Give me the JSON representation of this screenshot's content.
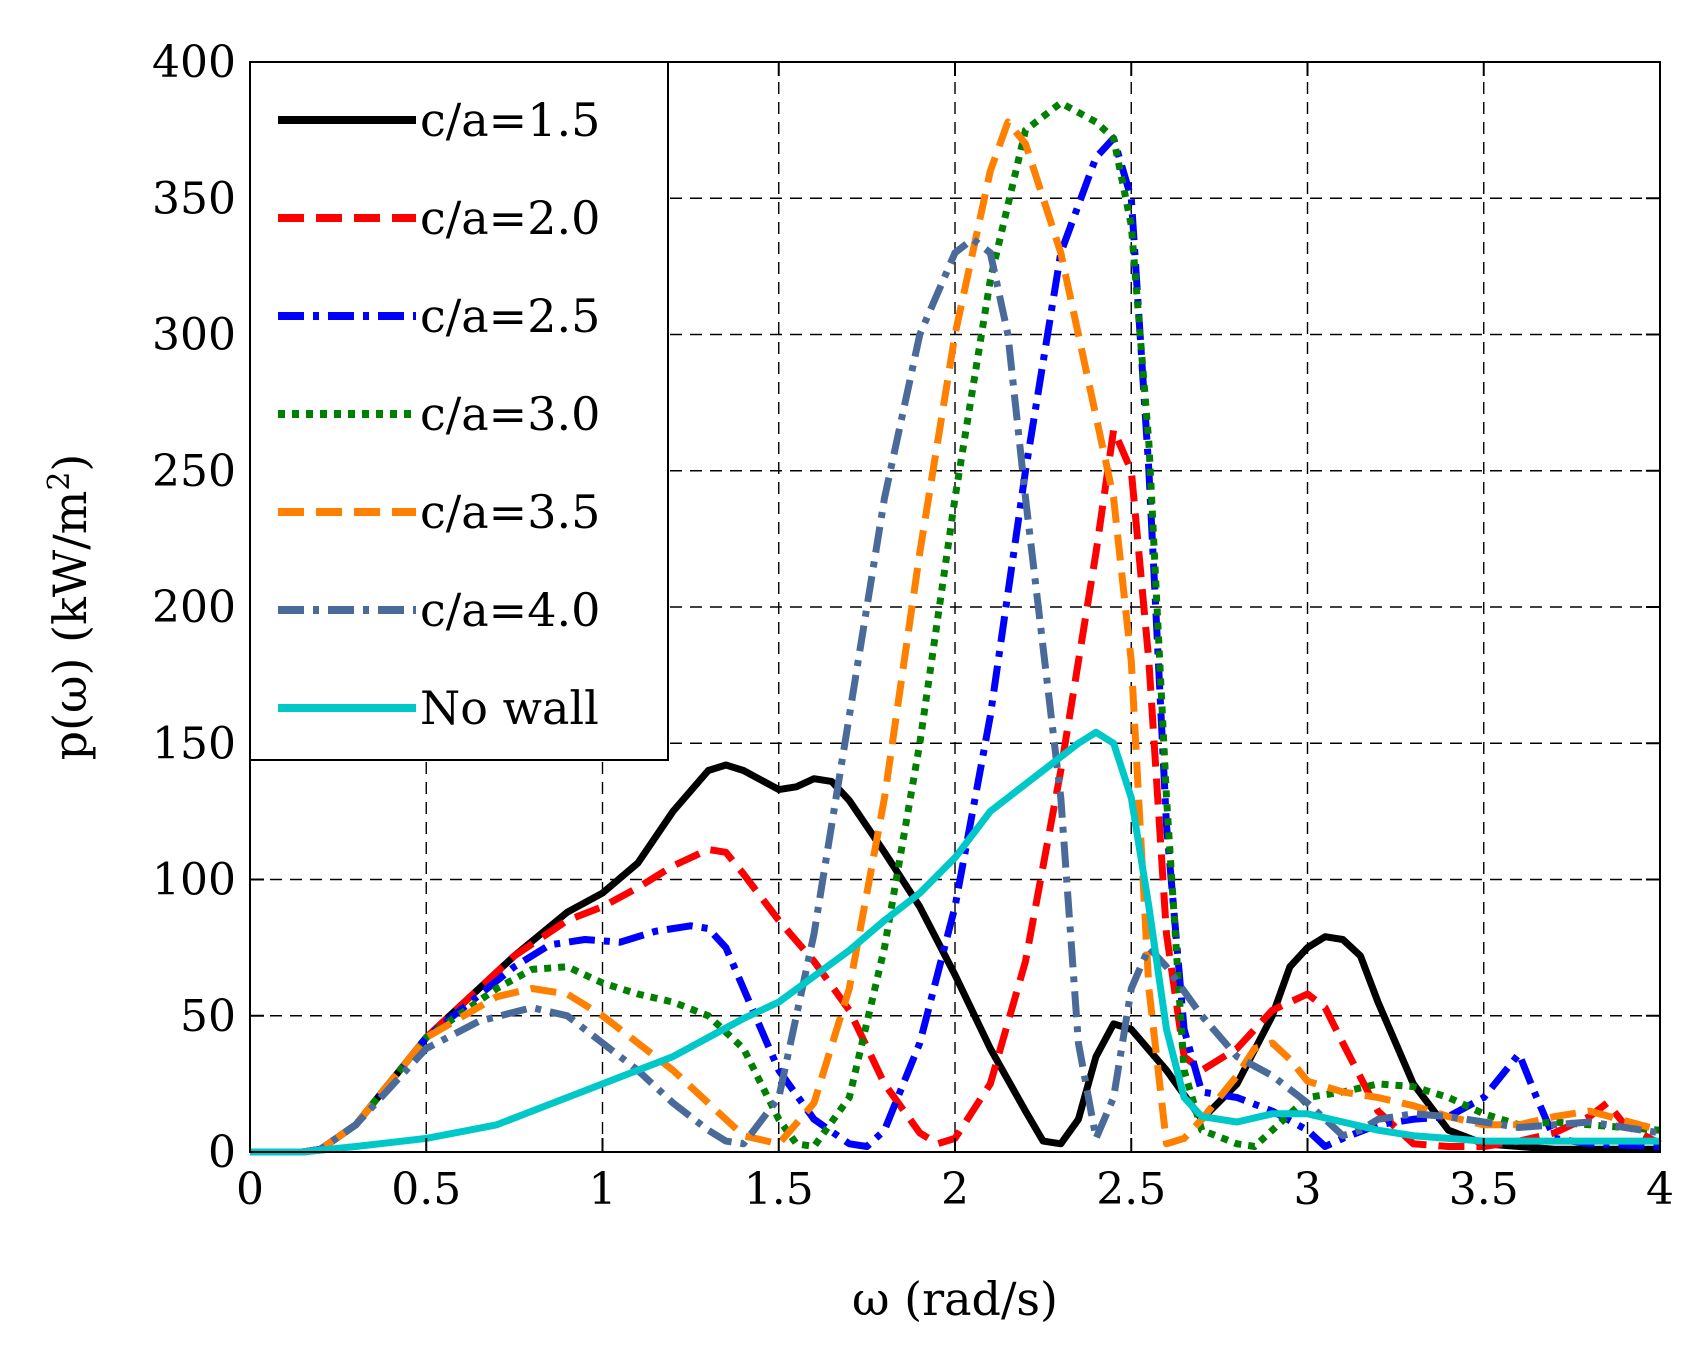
{
  "chart_data": {
    "type": "line",
    "title": "",
    "xlabel": "ω (rad/s)",
    "ylabel": "p(ω) (kW/m",
    "ylabel_sup": "2",
    "ylabel_end": ")",
    "xlim": [
      0,
      4
    ],
    "ylim": [
      0,
      400
    ],
    "xticks": [
      0,
      0.5,
      1,
      1.5,
      2,
      2.5,
      3,
      3.5,
      4
    ],
    "xtick_labels": [
      "0",
      "0.5",
      "1",
      "1.5",
      "2",
      "2.5",
      "3",
      "3.5",
      "4"
    ],
    "yticks": [
      0,
      50,
      100,
      150,
      200,
      250,
      300,
      350,
      400
    ],
    "ytick_labels": [
      "0",
      "50",
      "100",
      "150",
      "200",
      "250",
      "300",
      "350",
      "400"
    ],
    "grid": true,
    "legend_position": "top-left",
    "series": [
      {
        "name": "c/a=1.5",
        "color": "#000000",
        "dash": "solid",
        "points": [
          [
            0,
            0
          ],
          [
            0.15,
            0
          ],
          [
            0.2,
            1
          ],
          [
            0.3,
            10
          ],
          [
            0.5,
            42
          ],
          [
            0.75,
            72
          ],
          [
            0.9,
            88
          ],
          [
            1.0,
            95
          ],
          [
            1.1,
            106
          ],
          [
            1.2,
            125
          ],
          [
            1.3,
            140
          ],
          [
            1.35,
            142
          ],
          [
            1.4,
            140
          ],
          [
            1.5,
            133
          ],
          [
            1.55,
            134
          ],
          [
            1.6,
            137
          ],
          [
            1.65,
            136
          ],
          [
            1.7,
            129
          ],
          [
            1.8,
            110
          ],
          [
            1.9,
            90
          ],
          [
            2.0,
            65
          ],
          [
            2.1,
            38
          ],
          [
            2.2,
            15
          ],
          [
            2.25,
            4
          ],
          [
            2.3,
            3
          ],
          [
            2.35,
            12
          ],
          [
            2.4,
            35
          ],
          [
            2.45,
            47
          ],
          [
            2.5,
            45
          ],
          [
            2.6,
            30
          ],
          [
            2.7,
            12
          ],
          [
            2.8,
            25
          ],
          [
            2.9,
            50
          ],
          [
            2.95,
            68
          ],
          [
            3.0,
            75
          ],
          [
            3.05,
            79
          ],
          [
            3.1,
            78
          ],
          [
            3.15,
            72
          ],
          [
            3.2,
            55
          ],
          [
            3.3,
            25
          ],
          [
            3.4,
            8
          ],
          [
            3.5,
            3
          ],
          [
            3.6,
            2
          ],
          [
            3.7,
            1
          ],
          [
            3.8,
            1
          ],
          [
            4.0,
            1
          ]
        ]
      },
      {
        "name": "c/a=2.0",
        "color": "#ff0000",
        "dash": "dashed",
        "points": [
          [
            0,
            0
          ],
          [
            0.15,
            0
          ],
          [
            0.2,
            1
          ],
          [
            0.3,
            10
          ],
          [
            0.5,
            42
          ],
          [
            0.75,
            72
          ],
          [
            0.9,
            85
          ],
          [
            1.0,
            90
          ],
          [
            1.1,
            97
          ],
          [
            1.2,
            105
          ],
          [
            1.3,
            111
          ],
          [
            1.35,
            110
          ],
          [
            1.4,
            102
          ],
          [
            1.5,
            85
          ],
          [
            1.6,
            70
          ],
          [
            1.7,
            52
          ],
          [
            1.8,
            25
          ],
          [
            1.9,
            7
          ],
          [
            1.95,
            3
          ],
          [
            2.0,
            5
          ],
          [
            2.1,
            25
          ],
          [
            2.2,
            70
          ],
          [
            2.3,
            140
          ],
          [
            2.4,
            220
          ],
          [
            2.45,
            265
          ],
          [
            2.5,
            250
          ],
          [
            2.55,
            180
          ],
          [
            2.6,
            80
          ],
          [
            2.65,
            35
          ],
          [
            2.7,
            30
          ],
          [
            2.8,
            38
          ],
          [
            2.9,
            52
          ],
          [
            3.0,
            58
          ],
          [
            3.05,
            53
          ],
          [
            3.1,
            40
          ],
          [
            3.2,
            15
          ],
          [
            3.3,
            3
          ],
          [
            3.4,
            2
          ],
          [
            3.5,
            2
          ],
          [
            3.6,
            4
          ],
          [
            3.7,
            7
          ],
          [
            3.8,
            13
          ],
          [
            3.85,
            18
          ],
          [
            3.9,
            10
          ],
          [
            4.0,
            3
          ]
        ]
      },
      {
        "name": "c/a=2.5",
        "color": "#0000ff",
        "dash": "dashdot",
        "points": [
          [
            0,
            0
          ],
          [
            0.15,
            0
          ],
          [
            0.2,
            1
          ],
          [
            0.3,
            10
          ],
          [
            0.5,
            42
          ],
          [
            0.75,
            68
          ],
          [
            0.85,
            76
          ],
          [
            0.95,
            78
          ],
          [
            1.05,
            77
          ],
          [
            1.15,
            81
          ],
          [
            1.25,
            83
          ],
          [
            1.3,
            82
          ],
          [
            1.35,
            75
          ],
          [
            1.4,
            60
          ],
          [
            1.5,
            30
          ],
          [
            1.6,
            12
          ],
          [
            1.7,
            3
          ],
          [
            1.75,
            2
          ],
          [
            1.8,
            8
          ],
          [
            1.9,
            40
          ],
          [
            2.0,
            90
          ],
          [
            2.1,
            160
          ],
          [
            2.2,
            250
          ],
          [
            2.3,
            330
          ],
          [
            2.4,
            365
          ],
          [
            2.45,
            372
          ],
          [
            2.5,
            350
          ],
          [
            2.55,
            250
          ],
          [
            2.6,
            120
          ],
          [
            2.65,
            45
          ],
          [
            2.7,
            22
          ],
          [
            2.8,
            20
          ],
          [
            2.9,
            15
          ],
          [
            3.0,
            8
          ],
          [
            3.05,
            2
          ],
          [
            3.1,
            5
          ],
          [
            3.2,
            10
          ],
          [
            3.3,
            12
          ],
          [
            3.4,
            13
          ],
          [
            3.5,
            20
          ],
          [
            3.6,
            36
          ],
          [
            3.65,
            20
          ],
          [
            3.7,
            5
          ],
          [
            3.8,
            3
          ],
          [
            4.0,
            2
          ]
        ]
      },
      {
        "name": "c/a=3.0",
        "color": "#008000",
        "dash": "dotted",
        "points": [
          [
            0,
            0
          ],
          [
            0.15,
            0
          ],
          [
            0.2,
            1
          ],
          [
            0.3,
            10
          ],
          [
            0.5,
            42
          ],
          [
            0.7,
            60
          ],
          [
            0.8,
            67
          ],
          [
            0.9,
            68
          ],
          [
            1.0,
            62
          ],
          [
            1.1,
            58
          ],
          [
            1.2,
            55
          ],
          [
            1.3,
            50
          ],
          [
            1.4,
            38
          ],
          [
            1.5,
            12
          ],
          [
            1.55,
            3
          ],
          [
            1.6,
            2
          ],
          [
            1.7,
            20
          ],
          [
            1.8,
            75
          ],
          [
            1.9,
            150
          ],
          [
            2.0,
            240
          ],
          [
            2.1,
            320
          ],
          [
            2.2,
            375
          ],
          [
            2.3,
            385
          ],
          [
            2.4,
            378
          ],
          [
            2.45,
            372
          ],
          [
            2.5,
            340
          ],
          [
            2.55,
            260
          ],
          [
            2.6,
            130
          ],
          [
            2.65,
            30
          ],
          [
            2.7,
            8
          ],
          [
            2.8,
            3
          ],
          [
            2.85,
            2
          ],
          [
            2.9,
            8
          ],
          [
            3.0,
            20
          ],
          [
            3.1,
            22
          ],
          [
            3.2,
            25
          ],
          [
            3.3,
            24
          ],
          [
            3.4,
            20
          ],
          [
            3.5,
            14
          ],
          [
            3.6,
            10
          ],
          [
            3.7,
            11
          ],
          [
            3.8,
            10
          ],
          [
            4.0,
            8
          ]
        ]
      },
      {
        "name": "c/a=3.5",
        "color": "#ff8000",
        "dash": "dashed",
        "points": [
          [
            0,
            0
          ],
          [
            0.15,
            0
          ],
          [
            0.2,
            1
          ],
          [
            0.3,
            10
          ],
          [
            0.5,
            42
          ],
          [
            0.7,
            57
          ],
          [
            0.8,
            60
          ],
          [
            0.9,
            58
          ],
          [
            1.0,
            50
          ],
          [
            1.1,
            40
          ],
          [
            1.2,
            30
          ],
          [
            1.3,
            18
          ],
          [
            1.4,
            6
          ],
          [
            1.5,
            3
          ],
          [
            1.6,
            18
          ],
          [
            1.7,
            60
          ],
          [
            1.8,
            130
          ],
          [
            1.9,
            220
          ],
          [
            2.0,
            300
          ],
          [
            2.1,
            360
          ],
          [
            2.15,
            378
          ],
          [
            2.2,
            370
          ],
          [
            2.3,
            330
          ],
          [
            2.4,
            270
          ],
          [
            2.45,
            240
          ],
          [
            2.5,
            180
          ],
          [
            2.55,
            60
          ],
          [
            2.6,
            3
          ],
          [
            2.65,
            5
          ],
          [
            2.7,
            12
          ],
          [
            2.8,
            28
          ],
          [
            2.85,
            38
          ],
          [
            2.9,
            40
          ],
          [
            2.95,
            34
          ],
          [
            3.0,
            26
          ],
          [
            3.1,
            22
          ],
          [
            3.2,
            20
          ],
          [
            3.3,
            17
          ],
          [
            3.4,
            13
          ],
          [
            3.5,
            10
          ],
          [
            3.6,
            10
          ],
          [
            3.7,
            13
          ],
          [
            3.8,
            15
          ],
          [
            4.0,
            8
          ]
        ]
      },
      {
        "name": "c/a=4.0",
        "color": "#4a6b9a",
        "dash": "dashdot",
        "points": [
          [
            0,
            0
          ],
          [
            0.15,
            0
          ],
          [
            0.2,
            1
          ],
          [
            0.3,
            10
          ],
          [
            0.5,
            38
          ],
          [
            0.65,
            48
          ],
          [
            0.8,
            53
          ],
          [
            0.9,
            50
          ],
          [
            1.0,
            40
          ],
          [
            1.1,
            30
          ],
          [
            1.2,
            18
          ],
          [
            1.3,
            8
          ],
          [
            1.35,
            4
          ],
          [
            1.4,
            3
          ],
          [
            1.5,
            20
          ],
          [
            1.6,
            80
          ],
          [
            1.7,
            160
          ],
          [
            1.8,
            240
          ],
          [
            1.9,
            300
          ],
          [
            2.0,
            330
          ],
          [
            2.05,
            335
          ],
          [
            2.1,
            330
          ],
          [
            2.15,
            300
          ],
          [
            2.2,
            240
          ],
          [
            2.3,
            130
          ],
          [
            2.35,
            40
          ],
          [
            2.4,
            5
          ],
          [
            2.45,
            20
          ],
          [
            2.5,
            60
          ],
          [
            2.55,
            75
          ],
          [
            2.6,
            68
          ],
          [
            2.7,
            50
          ],
          [
            2.8,
            35
          ],
          [
            2.9,
            28
          ],
          [
            3.0,
            18
          ],
          [
            3.05,
            12
          ],
          [
            3.1,
            6
          ],
          [
            3.15,
            8
          ],
          [
            3.2,
            12
          ],
          [
            3.3,
            14
          ],
          [
            3.4,
            13
          ],
          [
            3.5,
            11
          ],
          [
            3.6,
            9
          ],
          [
            3.7,
            10
          ],
          [
            3.8,
            11
          ],
          [
            4.0,
            7
          ]
        ]
      },
      {
        "name": "No wall",
        "color": "#00c8c8",
        "dash": "solid",
        "points": [
          [
            0,
            0
          ],
          [
            0.15,
            0
          ],
          [
            0.3,
            2
          ],
          [
            0.5,
            5
          ],
          [
            0.7,
            10
          ],
          [
            0.8,
            15
          ],
          [
            1.0,
            25
          ],
          [
            1.2,
            35
          ],
          [
            1.3,
            42
          ],
          [
            1.4,
            49
          ],
          [
            1.5,
            55
          ],
          [
            1.7,
            74
          ],
          [
            1.8,
            85
          ],
          [
            1.9,
            95
          ],
          [
            2.0,
            108
          ],
          [
            2.1,
            125
          ],
          [
            2.2,
            135
          ],
          [
            2.3,
            145
          ],
          [
            2.35,
            150
          ],
          [
            2.4,
            154
          ],
          [
            2.45,
            150
          ],
          [
            2.5,
            130
          ],
          [
            2.55,
            90
          ],
          [
            2.6,
            45
          ],
          [
            2.65,
            20
          ],
          [
            2.7,
            13
          ],
          [
            2.8,
            11
          ],
          [
            2.9,
            14
          ],
          [
            3.0,
            14
          ],
          [
            3.1,
            11
          ],
          [
            3.2,
            8
          ],
          [
            3.3,
            6
          ],
          [
            3.4,
            5
          ],
          [
            3.5,
            4
          ],
          [
            3.6,
            4
          ],
          [
            3.7,
            4
          ],
          [
            3.8,
            4
          ],
          [
            3.9,
            4
          ],
          [
            4.0,
            4
          ]
        ]
      }
    ]
  }
}
